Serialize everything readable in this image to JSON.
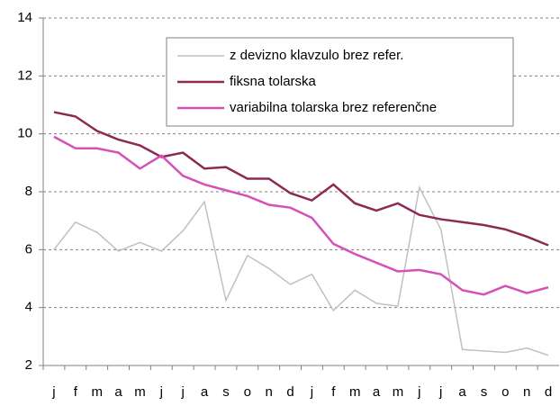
{
  "chart_data": {
    "type": "line",
    "categories": [
      "j",
      "f",
      "m",
      "a",
      "m",
      "j",
      "j",
      "a",
      "s",
      "o",
      "n",
      "d",
      "j",
      "f",
      "m",
      "a",
      "m",
      "j",
      "j",
      "a",
      "s",
      "o",
      "n",
      "d"
    ],
    "series": [
      {
        "name": "z devizno klavzulo brez refer.",
        "color": "#c0c0c0",
        "values": [
          6.0,
          6.95,
          6.6,
          5.95,
          6.25,
          5.95,
          6.65,
          7.65,
          4.25,
          5.8,
          5.35,
          4.8,
          5.15,
          3.9,
          4.6,
          4.15,
          4.05,
          8.15,
          6.7,
          2.55,
          2.5,
          2.45,
          2.6,
          2.35
        ]
      },
      {
        "name": "fiksna tolarska",
        "color": "#8c2a55",
        "values": [
          10.75,
          10.6,
          10.1,
          9.8,
          9.6,
          9.2,
          9.35,
          8.8,
          8.85,
          8.45,
          8.45,
          7.95,
          7.7,
          8.25,
          7.6,
          7.35,
          7.6,
          7.2,
          7.05,
          6.95,
          6.85,
          6.7,
          6.45,
          6.15
        ]
      },
      {
        "name": "variabilna tolarska brez referenčne",
        "color": "#d650b8",
        "values": [
          9.9,
          9.5,
          9.5,
          9.35,
          8.8,
          9.25,
          8.55,
          8.25,
          8.05,
          7.85,
          7.55,
          7.45,
          7.1,
          6.2,
          5.85,
          5.55,
          5.25,
          5.3,
          5.15,
          4.6,
          4.45,
          4.75,
          4.5,
          4.7
        ]
      }
    ],
    "ylim": [
      2,
      14
    ],
    "yticks": [
      2,
      4,
      6,
      8,
      10,
      12,
      14
    ],
    "grid": true,
    "legend": "upper right"
  }
}
